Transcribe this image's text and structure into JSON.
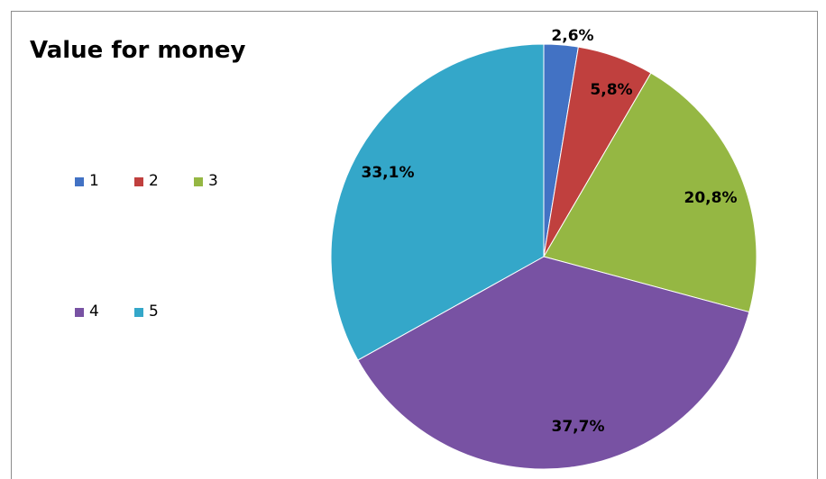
{
  "chart_data": {
    "type": "pie",
    "title": "Value for money",
    "categories": [
      "1",
      "2",
      "3",
      "4",
      "5"
    ],
    "values": [
      2.6,
      5.8,
      20.8,
      37.7,
      33.1
    ],
    "data_labels": [
      "2,6%",
      "5,8%",
      "20,8%",
      "37,7%",
      "33,1%"
    ],
    "colors": [
      "#4272c4",
      "#c0403e",
      "#95b743",
      "#7852a3",
      "#34a7c9"
    ],
    "legend": {
      "placement": "left",
      "entries": [
        "1",
        "2",
        "3",
        "4",
        "5"
      ]
    },
    "start_angle_deg": 0,
    "direction": "clockwise"
  }
}
